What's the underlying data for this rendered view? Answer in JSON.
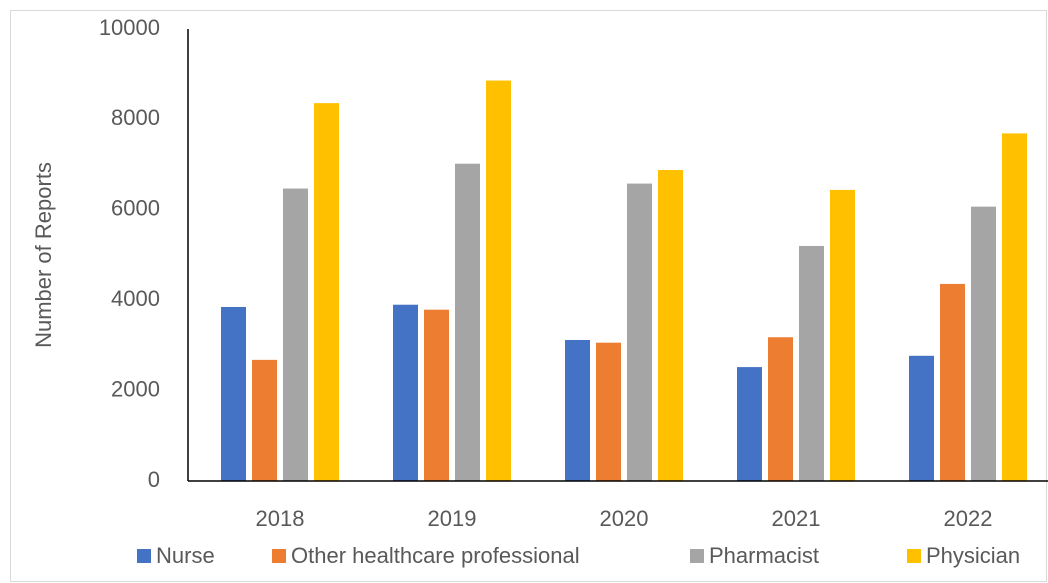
{
  "chart_data": {
    "type": "bar",
    "y_label": "Number of Reports",
    "categories": [
      "2018",
      "2019",
      "2020",
      "2021",
      "2022"
    ],
    "series": [
      {
        "name": "Nurse",
        "color": "#4472c4",
        "values": [
          3850,
          3900,
          3120,
          2520,
          2770
        ]
      },
      {
        "name": "Other healthcare professional",
        "color": "#ed7d31",
        "values": [
          2680,
          3790,
          3060,
          3180,
          4360
        ]
      },
      {
        "name": "Pharmacist",
        "color": "#a5a5a5",
        "values": [
          6470,
          7020,
          6580,
          5200,
          6070
        ]
      },
      {
        "name": "Physician",
        "color": "#ffc000",
        "values": [
          8360,
          8860,
          6880,
          6440,
          7690
        ]
      }
    ],
    "ylim": [
      0,
      10000
    ],
    "yticks": [
      0,
      2000,
      4000,
      6000,
      8000,
      10000
    ],
    "grid": false,
    "legend": "bottom"
  }
}
